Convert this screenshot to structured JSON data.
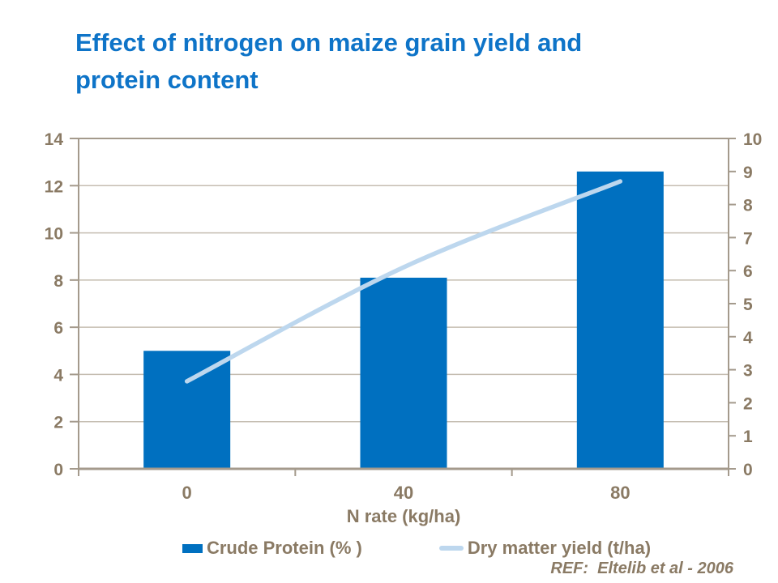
{
  "title": {
    "line1": "Effect of nitrogen on maize grain yield and",
    "line2": "protein content"
  },
  "chart_data": {
    "type": "combo-bar-line",
    "categories": [
      "0",
      "40",
      "80"
    ],
    "xlabel": "N rate (kg/ha)",
    "series": [
      {
        "name": "Crude Protein (%)",
        "type": "bar",
        "axis": "left",
        "values": [
          5.0,
          8.1,
          12.6
        ]
      },
      {
        "name": "Dry matter yield (t/ha)",
        "type": "line",
        "axis": "right",
        "values": [
          2.65,
          6.1,
          8.7
        ]
      }
    ],
    "left_axis": {
      "min": 0,
      "max": 14,
      "tick_step": 2,
      "tick_labels": [
        "0",
        "2",
        "4",
        "6",
        "8",
        "10",
        "12",
        "14"
      ]
    },
    "right_axis": {
      "min": 0,
      "max": 10,
      "tick_step": 1,
      "tick_labels": [
        "0",
        "1",
        "2",
        "3",
        "4",
        "5",
        "6",
        "7",
        "8",
        "9",
        "10"
      ]
    },
    "grid": "horizontal",
    "legend_position": "bottom"
  },
  "legend": {
    "items": [
      {
        "label": "Crude Protein (% )",
        "swatch": "bar-square"
      },
      {
        "label": "Dry matter yield (t/ha)",
        "swatch": "line"
      }
    ]
  },
  "footnote": "REF:  Eltelib et al - 2006",
  "colors": {
    "title": "#0E74C8",
    "bar": "#0070C0",
    "line": "#BDD7EE",
    "axis_text": "#8A7A64",
    "grid": "#C5BDB1",
    "border": "#A49A8C"
  }
}
